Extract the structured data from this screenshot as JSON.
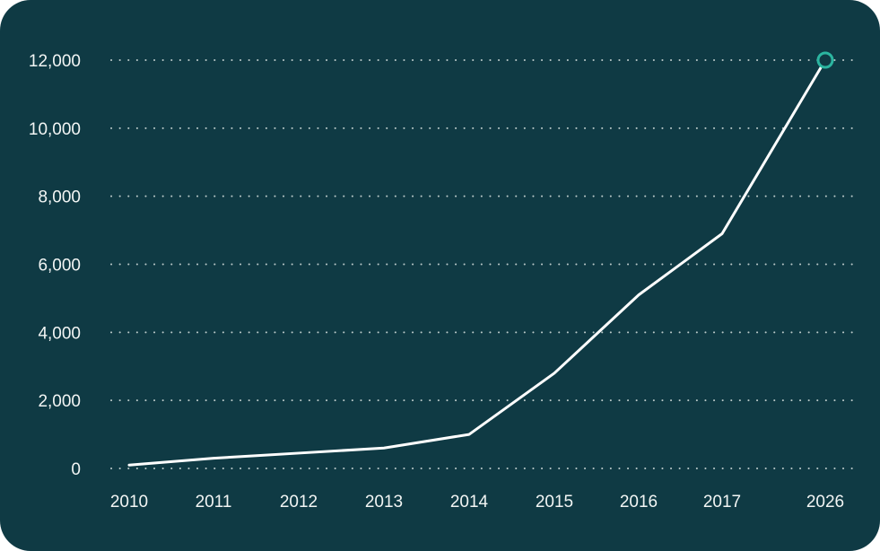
{
  "chart_data": {
    "type": "line",
    "title": "",
    "xlabel": "",
    "ylabel": "",
    "categories": [
      "2010",
      "2011",
      "2012",
      "2013",
      "2014",
      "2015",
      "2016",
      "2017",
      "2026"
    ],
    "series": [
      {
        "values": [
          100,
          300,
          450,
          600,
          1000,
          2800,
          5100,
          6900,
          12000
        ]
      }
    ],
    "y_ticks": [
      "0",
      "2,000",
      "4,000",
      "6,000",
      "8,000",
      "10,000",
      "12,000"
    ],
    "y_tick_values": [
      0,
      2000,
      4000,
      6000,
      8000,
      10000,
      12000
    ],
    "ylim": [
      0,
      12000
    ],
    "grid": true,
    "legend": "none",
    "highlight_last_point": true,
    "colors": {
      "background": "#0f3a44",
      "line": "#ffffff",
      "marker": "#2bb5a0",
      "text": "#f2f5f4",
      "grid": "#d8e2e0"
    }
  }
}
